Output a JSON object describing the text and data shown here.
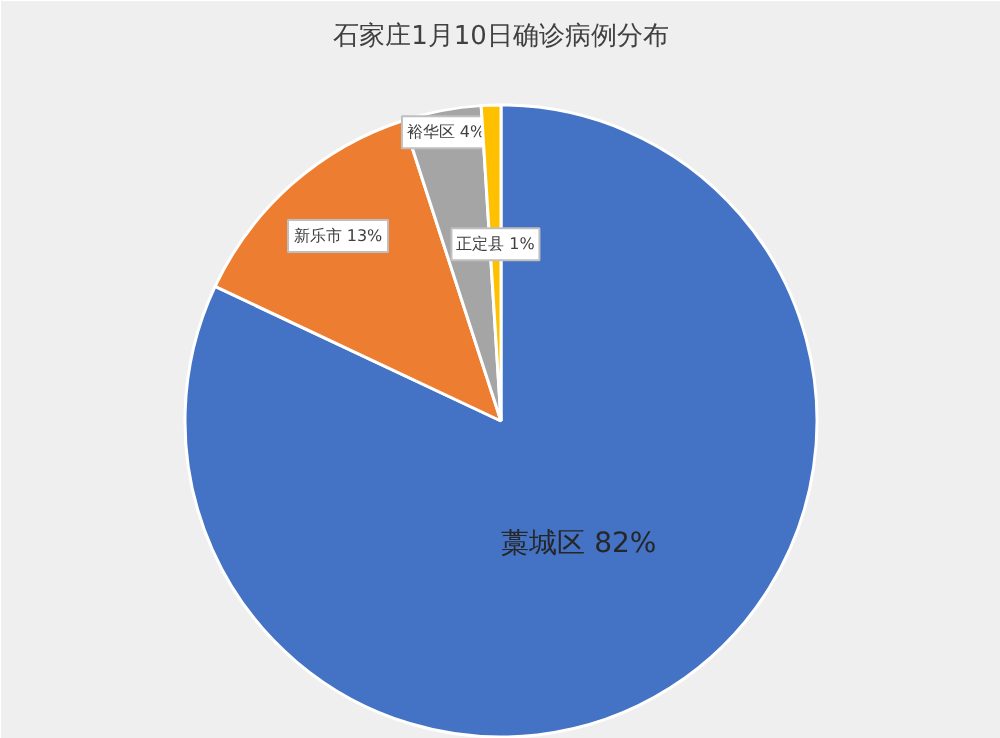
{
  "chart_data": {
    "type": "pie",
    "title": "石家庄1月10日确诊病例分布",
    "categories": [
      "藁城区",
      "新乐市",
      "裕华区",
      "正定县"
    ],
    "values": [
      82,
      13,
      4,
      1
    ],
    "colors": [
      "#4472c4",
      "#ed7d31",
      "#a5a5a5",
      "#ffc000"
    ],
    "value_labels": [
      "82%",
      "13%",
      "4%",
      "1%"
    ]
  }
}
